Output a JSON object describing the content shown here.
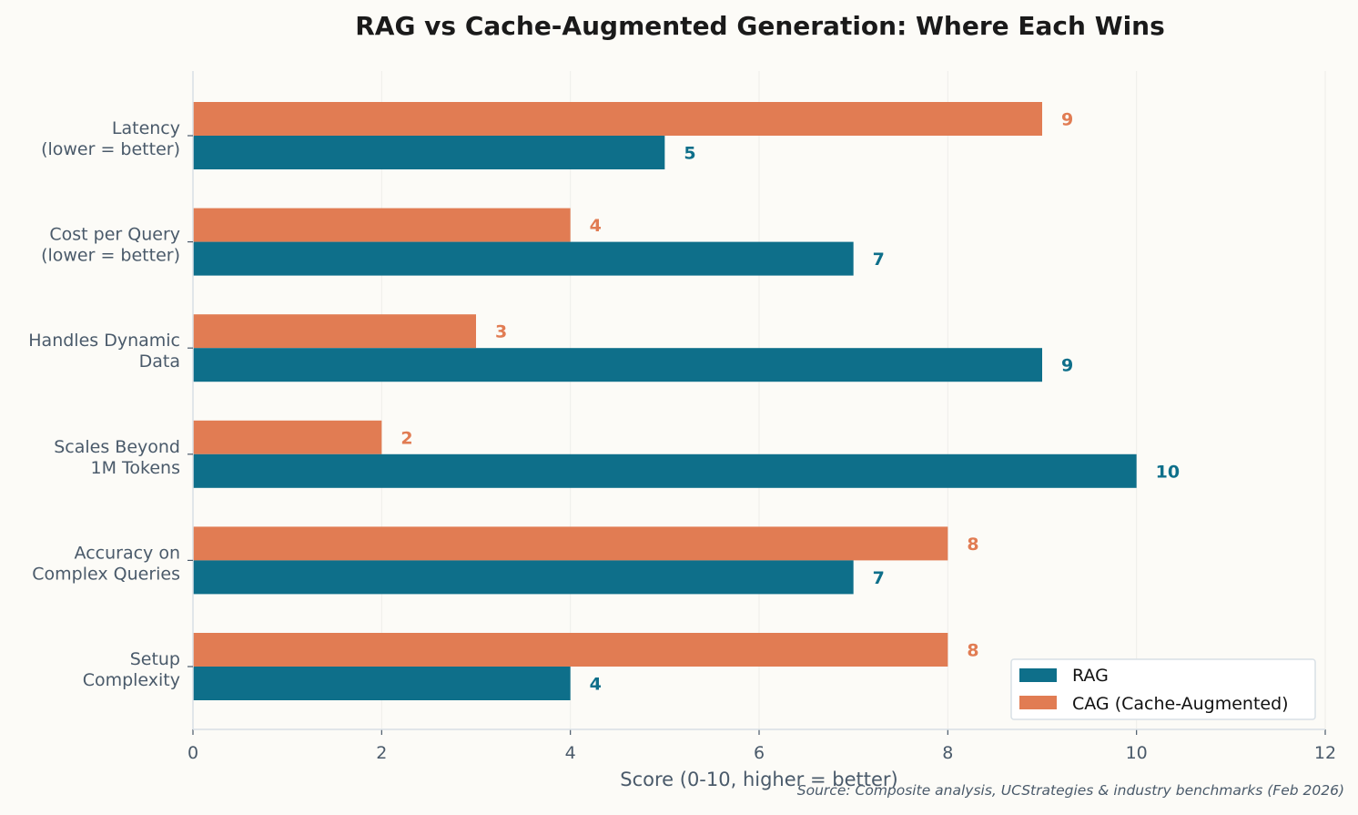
{
  "chart_data": {
    "type": "bar",
    "orientation": "horizontal",
    "title": "RAG vs Cache-Augmented Generation: Where Each Wins",
    "xlabel": "Score (0-10, higher = better)",
    "ylabel": "",
    "xlim": [
      0,
      12
    ],
    "xticks": [
      "0",
      "2",
      "4",
      "6",
      "8",
      "10",
      "12"
    ],
    "grid": "vertical",
    "legend_placement": "bottom-right",
    "categories": [
      [
        "Latency",
        "(lower = better)"
      ],
      [
        "Cost per Query",
        "(lower = better)"
      ],
      [
        "Handles Dynamic",
        "Data"
      ],
      [
        "Scales Beyond",
        "1M Tokens"
      ],
      [
        "Accuracy on",
        "Complex Queries"
      ],
      [
        "Setup",
        "Complexity"
      ]
    ],
    "series": [
      {
        "name": "RAG",
        "color": "#0e6f8a",
        "values": [
          5,
          7,
          9,
          10,
          7,
          4
        ]
      },
      {
        "name": "CAG (Cache-Augmented)",
        "color": "#e17c53",
        "values": [
          9,
          4,
          3,
          2,
          8,
          8
        ]
      }
    ],
    "source": "Source: Composite analysis, UCStrategies & industry benchmarks (Feb 2026)"
  }
}
